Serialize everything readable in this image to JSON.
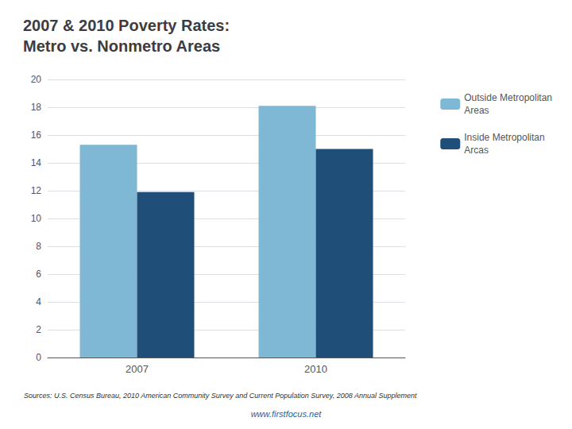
{
  "chart_data": {
    "type": "bar",
    "title": "2007 & 2010 Poverty Rates:\nMetro vs. Nonmetro Areas",
    "categories": [
      "2007",
      "2010"
    ],
    "series": [
      {
        "name": "Outside Metropolitan\nAreas",
        "color": "#7eb8d4",
        "values": [
          15.3,
          18.1
        ]
      },
      {
        "name": "Inside Metropolitan\nArcas",
        "color": "#1f4e79",
        "values": [
          11.9,
          15.0
        ]
      }
    ],
    "ylim": [
      0,
      20
    ],
    "yticks": [
      0,
      2,
      4,
      6,
      8,
      10,
      12,
      14,
      16,
      18,
      20
    ],
    "grid": true,
    "legend": "right",
    "annotations": [
      "Sources: U.S. Census Bureau, 2010 American Community Survey and Current Population Survey, 2008 Annual Supplement",
      "www.firstfocus.net"
    ]
  }
}
